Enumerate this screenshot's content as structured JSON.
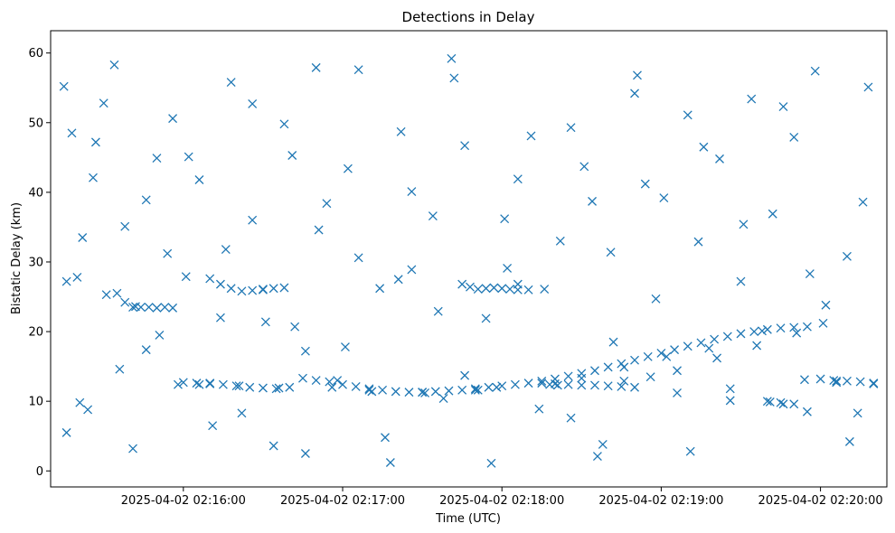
{
  "chart_data": {
    "type": "scatter",
    "title": "Detections in Delay",
    "xlabel": "Time (UTC)",
    "ylabel": "Bistatic Delay (km)",
    "x_type": "time",
    "xlim": [
      "2025-04-02 02:15:10",
      "2025-04-02 02:20:25"
    ],
    "ylim": [
      -2.3,
      63.2
    ],
    "x_ticks": [
      "2025-04-02 02:16:00",
      "2025-04-02 02:17:00",
      "2025-04-02 02:18:00",
      "2025-04-02 02:19:00",
      "2025-04-02 02:20:00"
    ],
    "y_ticks": [
      0,
      10,
      20,
      30,
      40,
      50,
      60
    ],
    "grid": false,
    "marker": "x",
    "color": "#1f77b4",
    "series": [
      {
        "x": [
          "2025-04-02 02:15:15",
          "2025-04-02 02:15:16",
          "2025-04-02 02:15:18",
          "2025-04-02 02:15:20",
          "2025-04-02 02:15:22",
          "2025-04-02 02:15:24",
          "2025-04-02 02:15:27",
          "2025-04-02 02:15:30",
          "2025-04-02 02:15:34",
          "2025-04-02 02:15:38",
          "2025-04-02 02:15:42",
          "2025-04-02 02:15:46",
          "2025-04-02 02:15:50",
          "2025-04-02 02:15:54",
          "2025-04-02 02:15:58",
          "2025-04-02 02:16:02",
          "2025-04-02 02:16:06",
          "2025-04-02 02:16:10",
          "2025-04-02 02:16:14",
          "2025-04-02 02:16:18",
          "2025-04-02 02:16:22",
          "2025-04-02 02:16:26",
          "2025-04-02 02:16:30",
          "2025-04-02 02:16:34",
          "2025-04-02 02:16:38",
          "2025-04-02 02:16:42",
          "2025-04-02 02:16:46",
          "2025-04-02 02:16:50",
          "2025-04-02 02:16:54",
          "2025-04-02 02:16:58",
          "2025-04-02 02:17:02",
          "2025-04-02 02:17:06",
          "2025-04-02 02:17:10",
          "2025-04-02 02:17:14",
          "2025-04-02 02:17:18",
          "2025-04-02 02:17:22",
          "2025-04-02 02:17:26",
          "2025-04-02 02:17:30",
          "2025-04-02 02:17:34",
          "2025-04-02 02:17:38",
          "2025-04-02 02:17:42",
          "2025-04-02 02:17:46",
          "2025-04-02 02:17:50",
          "2025-04-02 02:17:54",
          "2025-04-02 02:17:58",
          "2025-04-02 02:18:02",
          "2025-04-02 02:18:06",
          "2025-04-02 02:18:10",
          "2025-04-02 02:18:14",
          "2025-04-02 02:18:18",
          "2025-04-02 02:18:22",
          "2025-04-02 02:18:26",
          "2025-04-02 02:18:30",
          "2025-04-02 02:18:34",
          "2025-04-02 02:18:38",
          "2025-04-02 02:18:42",
          "2025-04-02 02:18:46",
          "2025-04-02 02:18:50",
          "2025-04-02 02:18:54",
          "2025-04-02 02:18:58",
          "2025-04-02 02:19:02",
          "2025-04-02 02:19:06",
          "2025-04-02 02:19:10",
          "2025-04-02 02:19:14",
          "2025-04-02 02:19:18",
          "2025-04-02 02:19:22",
          "2025-04-02 02:19:26",
          "2025-04-02 02:19:30",
          "2025-04-02 02:19:34",
          "2025-04-02 02:19:38",
          "2025-04-02 02:19:42",
          "2025-04-02 02:19:46",
          "2025-04-02 02:19:50",
          "2025-04-02 02:19:54",
          "2025-04-02 02:19:58",
          "2025-04-02 02:20:02",
          "2025-04-02 02:20:06",
          "2025-04-02 02:20:10",
          "2025-04-02 02:20:14",
          "2025-04-02 02:20:18",
          "2025-04-02 02:15:16",
          "2025-04-02 02:15:21",
          "2025-04-02 02:15:26",
          "2025-04-02 02:15:31",
          "2025-04-02 02:15:36",
          "2025-04-02 02:15:41",
          "2025-04-02 02:15:46",
          "2025-04-02 02:15:51",
          "2025-04-02 02:15:56",
          "2025-04-02 02:16:01",
          "2025-04-02 02:16:06",
          "2025-04-02 02:16:11",
          "2025-04-02 02:16:16",
          "2025-04-02 02:16:21",
          "2025-04-02 02:16:26",
          "2025-04-02 02:16:31",
          "2025-04-02 02:16:36",
          "2025-04-02 02:16:41",
          "2025-04-02 02:16:46",
          "2025-04-02 02:16:51",
          "2025-04-02 02:16:56",
          "2025-04-02 02:17:01",
          "2025-04-02 02:17:06",
          "2025-04-02 02:17:11",
          "2025-04-02 02:17:16",
          "2025-04-02 02:17:21",
          "2025-04-02 02:17:26",
          "2025-04-02 02:17:31",
          "2025-04-02 02:17:36",
          "2025-04-02 02:17:41",
          "2025-04-02 02:17:46",
          "2025-04-02 02:17:51",
          "2025-04-02 02:17:56",
          "2025-04-02 02:18:01",
          "2025-04-02 02:18:06",
          "2025-04-02 02:18:11",
          "2025-04-02 02:18:16",
          "2025-04-02 02:18:21",
          "2025-04-02 02:18:26",
          "2025-04-02 02:18:31",
          "2025-04-02 02:18:36",
          "2025-04-02 02:18:41",
          "2025-04-02 02:18:46",
          "2025-04-02 02:18:51",
          "2025-04-02 02:18:56",
          "2025-04-02 02:19:01",
          "2025-04-02 02:19:06",
          "2025-04-02 02:19:11",
          "2025-04-02 02:19:16",
          "2025-04-02 02:19:21",
          "2025-04-02 02:19:26",
          "2025-04-02 02:19:31",
          "2025-04-02 02:19:36",
          "2025-04-02 02:19:41",
          "2025-04-02 02:19:46",
          "2025-04-02 02:19:51",
          "2025-04-02 02:19:56",
          "2025-04-02 02:20:01",
          "2025-04-02 02:20:06",
          "2025-04-02 02:20:11",
          "2025-04-02 02:20:16",
          "2025-04-02 02:20:20"
        ],
        "y": [
          55.2,
          5.5,
          48.5,
          27.8,
          33.5,
          8.8,
          47.2,
          52.8,
          58.3,
          35.1,
          23.6,
          17.4,
          44.9,
          31.2,
          12.4,
          45.1,
          41.8,
          12.6,
          22.0,
          55.8,
          8.3,
          36.0,
          26.1,
          3.6,
          49.8,
          20.7,
          17.2,
          57.9,
          38.4,
          13.0,
          43.4,
          30.6,
          11.6,
          26.2,
          1.2,
          48.7,
          28.9,
          11.3,
          36.6,
          10.4,
          56.4,
          46.7,
          11.6,
          21.9,
          12.0,
          29.1,
          41.9,
          26.0,
          8.9,
          12.4,
          33.0,
          49.3,
          13.3,
          38.7,
          3.8,
          18.5,
          14.9,
          54.2,
          41.2,
          24.7,
          16.4,
          11.2,
          51.1,
          32.9,
          17.6,
          44.8,
          10.1,
          27.2,
          53.4,
          20.1,
          36.9,
          9.6,
          47.9,
          13.1,
          57.4,
          23.8,
          12.9,
          30.8,
          8.3,
          55.1,
          27.2,
          9.8,
          42.1,
          25.3,
          14.6,
          3.2,
          38.9,
          19.5,
          50.6,
          27.9,
          12.4,
          6.5,
          31.8,
          12.2,
          52.7,
          21.4,
          11.9,
          45.3,
          2.5,
          34.6,
          12.0,
          17.8,
          57.6,
          11.4,
          4.8,
          27.5,
          40.1,
          11.2,
          22.9,
          59.2,
          13.7,
          11.6,
          1.1,
          36.2,
          26.8,
          48.1,
          26.1,
          12.3,
          7.6,
          43.7,
          2.1,
          31.4,
          12.9,
          56.8,
          13.5,
          39.2,
          14.4,
          2.8,
          46.5,
          16.2,
          11.8,
          35.4,
          18.0,
          9.9,
          52.3,
          19.8,
          28.3,
          21.2,
          12.7,
          4.2,
          38.6,
          12.5
        ]
      },
      {
        "x": [
          "2025-04-02 02:15:35",
          "2025-04-02 02:15:38",
          "2025-04-02 02:15:41",
          "2025-04-02 02:15:44",
          "2025-04-02 02:15:47",
          "2025-04-02 02:15:50",
          "2025-04-02 02:15:53",
          "2025-04-02 02:15:56",
          "2025-04-02 02:16:10",
          "2025-04-02 02:16:14",
          "2025-04-02 02:16:18",
          "2025-04-02 02:16:22",
          "2025-04-02 02:16:26",
          "2025-04-02 02:16:30",
          "2025-04-02 02:16:34",
          "2025-04-02 02:16:38",
          "2025-04-02 02:17:45",
          "2025-04-02 02:17:48",
          "2025-04-02 02:17:51",
          "2025-04-02 02:17:54",
          "2025-04-02 02:17:57",
          "2025-04-02 02:18:00",
          "2025-04-02 02:18:03",
          "2025-04-02 02:18:06"
        ],
        "y": [
          25.5,
          24.2,
          23.5,
          23.5,
          23.5,
          23.4,
          23.5,
          23.4,
          27.6,
          26.8,
          26.2,
          25.8,
          25.9,
          26.0,
          26.2,
          26.3,
          26.8,
          26.4,
          26.1,
          26.2,
          26.3,
          26.2,
          26.1,
          26.0
        ]
      },
      {
        "x": [
          "2025-04-02 02:16:00",
          "2025-04-02 02:16:05",
          "2025-04-02 02:16:10",
          "2025-04-02 02:16:15",
          "2025-04-02 02:16:20",
          "2025-04-02 02:16:25",
          "2025-04-02 02:16:30",
          "2025-04-02 02:16:35",
          "2025-04-02 02:16:40",
          "2025-04-02 02:16:45",
          "2025-04-02 02:16:50",
          "2025-04-02 02:16:55",
          "2025-04-02 02:17:00",
          "2025-04-02 02:17:05",
          "2025-04-02 02:17:10",
          "2025-04-02 02:17:15",
          "2025-04-02 02:17:20",
          "2025-04-02 02:17:25",
          "2025-04-02 02:17:30",
          "2025-04-02 02:17:35",
          "2025-04-02 02:17:40",
          "2025-04-02 02:17:45",
          "2025-04-02 02:17:50",
          "2025-04-02 02:17:55",
          "2025-04-02 02:18:00",
          "2025-04-02 02:18:05",
          "2025-04-02 02:18:10",
          "2025-04-02 02:18:15",
          "2025-04-02 02:18:20",
          "2025-04-02 02:18:25",
          "2025-04-02 02:18:30",
          "2025-04-02 02:18:35",
          "2025-04-02 02:18:40",
          "2025-04-02 02:18:45",
          "2025-04-02 02:18:50",
          "2025-04-02 02:18:55",
          "2025-04-02 02:19:00",
          "2025-04-02 02:19:05",
          "2025-04-02 02:19:10",
          "2025-04-02 02:19:15",
          "2025-04-02 02:19:20",
          "2025-04-02 02:19:25",
          "2025-04-02 02:19:30",
          "2025-04-02 02:19:35",
          "2025-04-02 02:19:40",
          "2025-04-02 02:19:45",
          "2025-04-02 02:19:50",
          "2025-04-02 02:19:55"
        ],
        "y": [
          12.7,
          12.6,
          12.5,
          12.4,
          12.2,
          12.0,
          11.9,
          11.8,
          12.0,
          13.3,
          13.0,
          12.8,
          12.4,
          12.1,
          11.8,
          11.6,
          11.4,
          11.3,
          11.3,
          11.4,
          11.5,
          11.6,
          11.8,
          12.0,
          12.2,
          12.4,
          12.6,
          12.9,
          13.2,
          13.6,
          14.0,
          14.4,
          14.9,
          15.4,
          15.9,
          16.4,
          16.9,
          17.4,
          17.9,
          18.4,
          18.9,
          19.3,
          19.7,
          20.0,
          20.3,
          20.5,
          20.6,
          20.7
        ]
      },
      {
        "x": [
          "2025-04-02 02:18:15",
          "2025-04-02 02:18:20",
          "2025-04-02 02:18:25",
          "2025-04-02 02:18:30",
          "2025-04-02 02:18:35",
          "2025-04-02 02:18:40",
          "2025-04-02 02:18:45",
          "2025-04-02 02:18:50",
          "2025-04-02 02:19:40",
          "2025-04-02 02:19:45",
          "2025-04-02 02:19:50",
          "2025-04-02 02:19:55",
          "2025-04-02 02:20:00",
          "2025-04-02 02:20:05",
          "2025-04-02 02:20:10",
          "2025-04-02 02:20:15",
          "2025-04-02 02:20:20"
        ],
        "y": [
          12.6,
          12.5,
          12.4,
          12.3,
          12.3,
          12.2,
          12.1,
          12.0,
          10.0,
          9.8,
          9.6,
          8.5,
          13.2,
          13.0,
          12.9,
          12.8,
          12.6
        ]
      }
    ]
  }
}
